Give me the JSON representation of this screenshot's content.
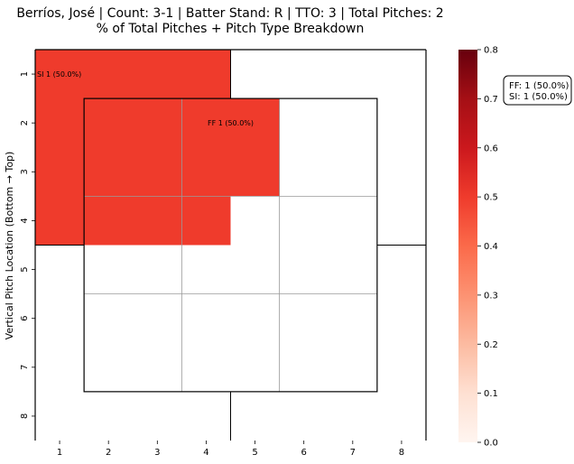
{
  "chart_data": {
    "type": "heatmap",
    "title_line1": "Berríos, José | Count: 3-1 | Batter Stand: R | TTO: 3 | Total Pitches: 2",
    "title_line2": "% of Total Pitches + Pitch Type Breakdown",
    "ylabel": "Vertical Pitch Location (Bottom → Top)",
    "xlabel": "",
    "x_ticks": [
      "1",
      "2",
      "3",
      "4",
      "5",
      "6",
      "7",
      "8"
    ],
    "y_ticks": [
      "1",
      "2",
      "3",
      "4",
      "5",
      "6",
      "7",
      "8"
    ],
    "cells": [
      {
        "x0": 0.5,
        "x1": 4.5,
        "y0": 0.5,
        "y1": 4.5,
        "value": 0.5,
        "label": "SI 1 (50.0%)"
      },
      {
        "x0": 3.5,
        "x1": 5.5,
        "y0": 1.5,
        "y1": 3.5,
        "value": 0.5,
        "label": "FF 1 (50.0%)"
      }
    ],
    "colorbar": {
      "min": 0.0,
      "max": 0.8,
      "ticks": [
        "0.0",
        "0.1",
        "0.2",
        "0.3",
        "0.4",
        "0.5",
        "0.6",
        "0.7",
        "0.8"
      ],
      "colormap": [
        "#fff5f0",
        "#fee0d2",
        "#fcbba1",
        "#fc9272",
        "#fb6a4a",
        "#ef3b2c",
        "#cb181d",
        "#a50f15",
        "#67000d"
      ]
    },
    "legend": {
      "lines": [
        "FF: 1 (50.0%)",
        "SI: 1 (50.0%)"
      ],
      "placement": "right"
    },
    "strike_zone": {
      "x_range": [
        1.5,
        7.5
      ],
      "y_range": [
        1.5,
        7.5
      ],
      "grid": 3
    },
    "grid": false
  }
}
